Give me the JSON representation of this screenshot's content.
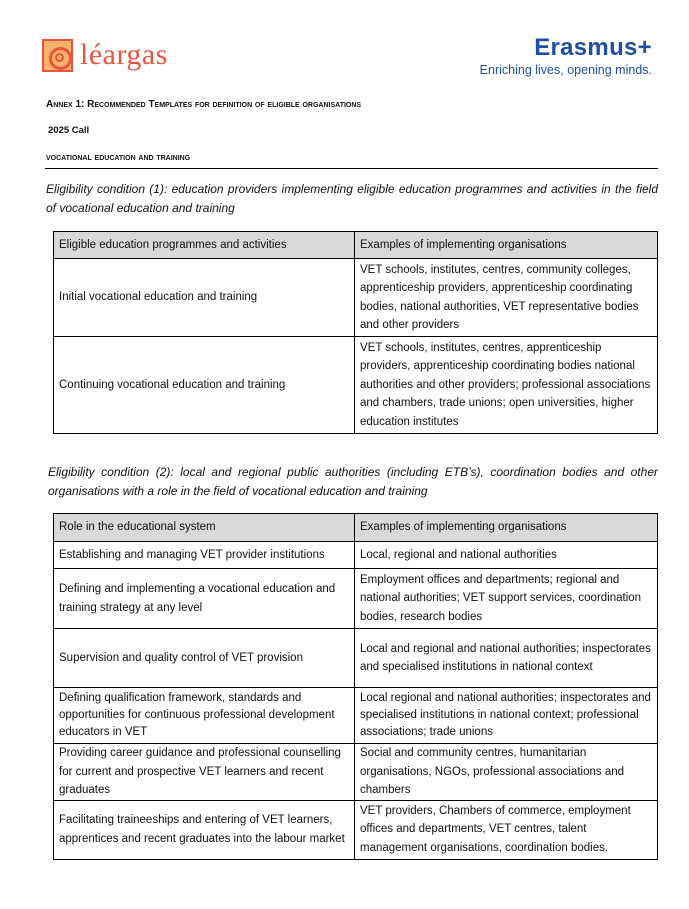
{
  "header": {
    "leargas_logo": "léargas",
    "erasmus_title": "Erasmus+",
    "erasmus_tagline": "Enriching lives, opening minds."
  },
  "annex_title": "Annex 1: Recommended Templates for definition of eligible organisations",
  "call": "2025 Call",
  "section": "Vocational education and training",
  "condition1": "Eligibility condition (1): education providers implementing eligible education programmes and activities in the field of vocational education and training",
  "table1": {
    "headers": [
      "Eligible education programmes and activities",
      "Examples of implementing organisations"
    ],
    "rows": [
      [
        "Initial vocational education and training",
        "VET schools, institutes, centres, community colleges, apprenticeship providers, apprenticeship coordinating bodies, national authorities, VET representative bodies and other providers"
      ],
      [
        "Continuing vocational education and training",
        "VET schools, institutes, centres, apprenticeship providers, apprenticeship coordinating bodies national authorities and other providers; professional associations and chambers, trade unions; open universities, higher education institutes"
      ]
    ]
  },
  "condition2": "Eligibility condition (2): local and regional public authorities (including ETB’s), coordination bodies and other organisations with a role in the field of vocational education and training",
  "table2": {
    "headers": [
      "Role in the educational system",
      "Examples of implementing organisations"
    ],
    "rows": [
      [
        "Establishing and managing VET provider institutions",
        "Local, regional and national authorities"
      ],
      [
        "Defining and implementing a vocational education and training strategy at any level",
        "Employment offices and departments; regional and national authorities; VET support services, coordination bodies, research bodies"
      ],
      [
        "Supervision and quality control of VET provision",
        "Local and regional and national authorities; inspectorates and specialised institutions in national context"
      ],
      [
        "Defining qualification framework, standards and opportunities for continuous professional development educators in VET",
        "Local regional and national authorities; inspectorates and specialised institutions in national context; professional associations; trade unions"
      ],
      [
        "Providing career guidance and professional counselling for current and prospective VET learners and recent graduates",
        "Social and community centres, humanitarian organisations, NGOs, professional associations and chambers"
      ],
      [
        "Facilitating traineeships and entering of VET learners, apprentices and recent graduates into the labour market",
        "VET providers, Chambers of commerce, employment offices and departments, VET centres, talent management organisations, coordination bodies."
      ]
    ]
  }
}
